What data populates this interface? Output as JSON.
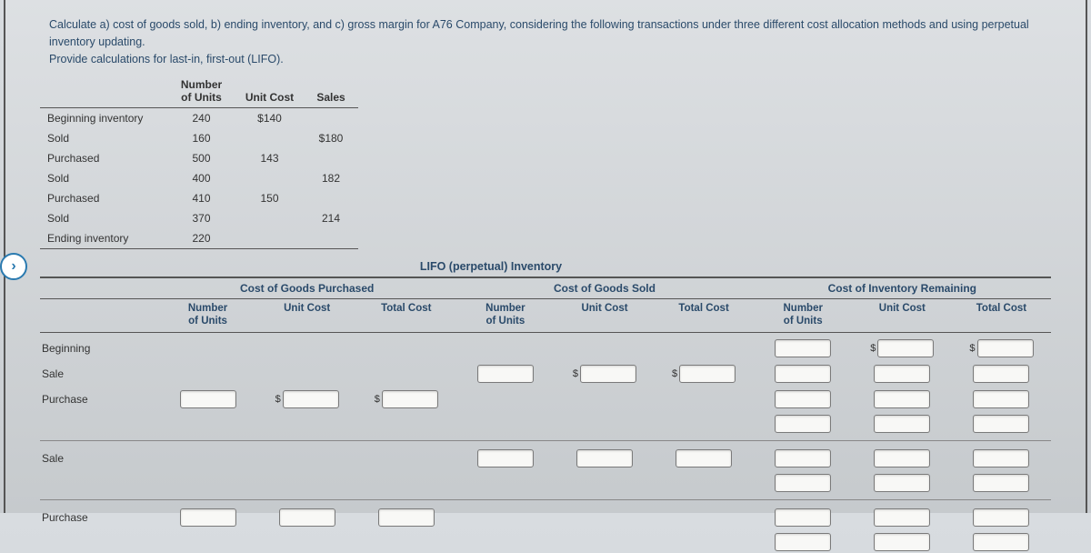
{
  "prompt_line1": "Calculate a) cost of goods sold, b) ending inventory, and c) gross margin for A76 Company, considering the following transactions under three different cost allocation methods and using perpetual inventory updating.",
  "prompt_line2": "Provide calculations for last-in, first-out (LIFO).",
  "upper": {
    "headers": {
      "units": "Number\nof Units",
      "unitcost": "Unit Cost",
      "sales": "Sales"
    },
    "rows": [
      {
        "label": "Beginning inventory",
        "units": "240",
        "unitcost": "$140",
        "sales": ""
      },
      {
        "label": "Sold",
        "units": "160",
        "unitcost": "",
        "sales": "$180"
      },
      {
        "label": "Purchased",
        "units": "500",
        "unitcost": "143",
        "sales": ""
      },
      {
        "label": "Sold",
        "units": "400",
        "unitcost": "",
        "sales": "182"
      },
      {
        "label": "Purchased",
        "units": "410",
        "unitcost": "150",
        "sales": ""
      },
      {
        "label": "Sold",
        "units": "370",
        "unitcost": "",
        "sales": "214"
      },
      {
        "label": "Ending inventory",
        "units": "220",
        "unitcost": "",
        "sales": ""
      }
    ]
  },
  "lifo_title": "LIFO (perpetual) Inventory",
  "groups": {
    "blank": "",
    "cogp": "Cost of Goods Purchased",
    "cogs": "Cost of Goods Sold",
    "coir": "Cost of Inventory Remaining"
  },
  "sub": {
    "units": "Number\nof Units",
    "unitcost": "Unit Cost",
    "totalcost": "Total Cost"
  },
  "rowlabels": {
    "beginning": "Beginning",
    "sale": "Sale",
    "purchase": "Purchase"
  },
  "colors": {
    "heading": "#2a4a6a",
    "border": "#555555",
    "input_bg": "#f8f8f6",
    "page_bg_top": "#dde0e3",
    "page_bg_bot": "#c6cacd",
    "chevron": "#2a7ab0"
  }
}
